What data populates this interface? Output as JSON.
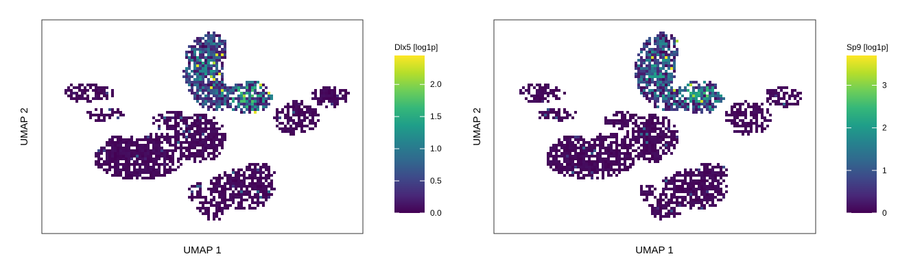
{
  "chart_data": [
    {
      "type": "scatter",
      "subtype": "hexbin-umap",
      "xlabel": "UMAP 1",
      "ylabel": "UMAP 2",
      "colorbar": {
        "title": "Dlx5 [log1p]",
        "range": [
          0,
          2.45
        ],
        "ticks": [
          0.0,
          0.5,
          1.0,
          1.5,
          2.0
        ],
        "tick_labels": [
          "0.0",
          "0.5",
          "1.0",
          "1.5",
          "2.0"
        ],
        "colormap": "viridis"
      },
      "high_expression_regions": [
        "upper lobe",
        "upper-right lobe"
      ]
    },
    {
      "type": "scatter",
      "subtype": "hexbin-umap",
      "xlabel": "UMAP 1",
      "ylabel": "UMAP 2",
      "colorbar": {
        "title": "Sp9 [log1p]",
        "range": [
          0,
          3.7
        ],
        "ticks": [
          0,
          1,
          2,
          3
        ],
        "tick_labels": [
          "0",
          "1",
          "2",
          "3"
        ],
        "colormap": "viridis"
      },
      "high_expression_regions": [
        "upper lobe",
        "upper-right lobe"
      ]
    }
  ],
  "colors": {
    "viridis": [
      "#440154",
      "#482878",
      "#3e4989",
      "#31688e",
      "#26828e",
      "#1f9e89",
      "#35b779",
      "#6ece58",
      "#b5de2b",
      "#fde725"
    ],
    "panel_border": "#333333"
  }
}
